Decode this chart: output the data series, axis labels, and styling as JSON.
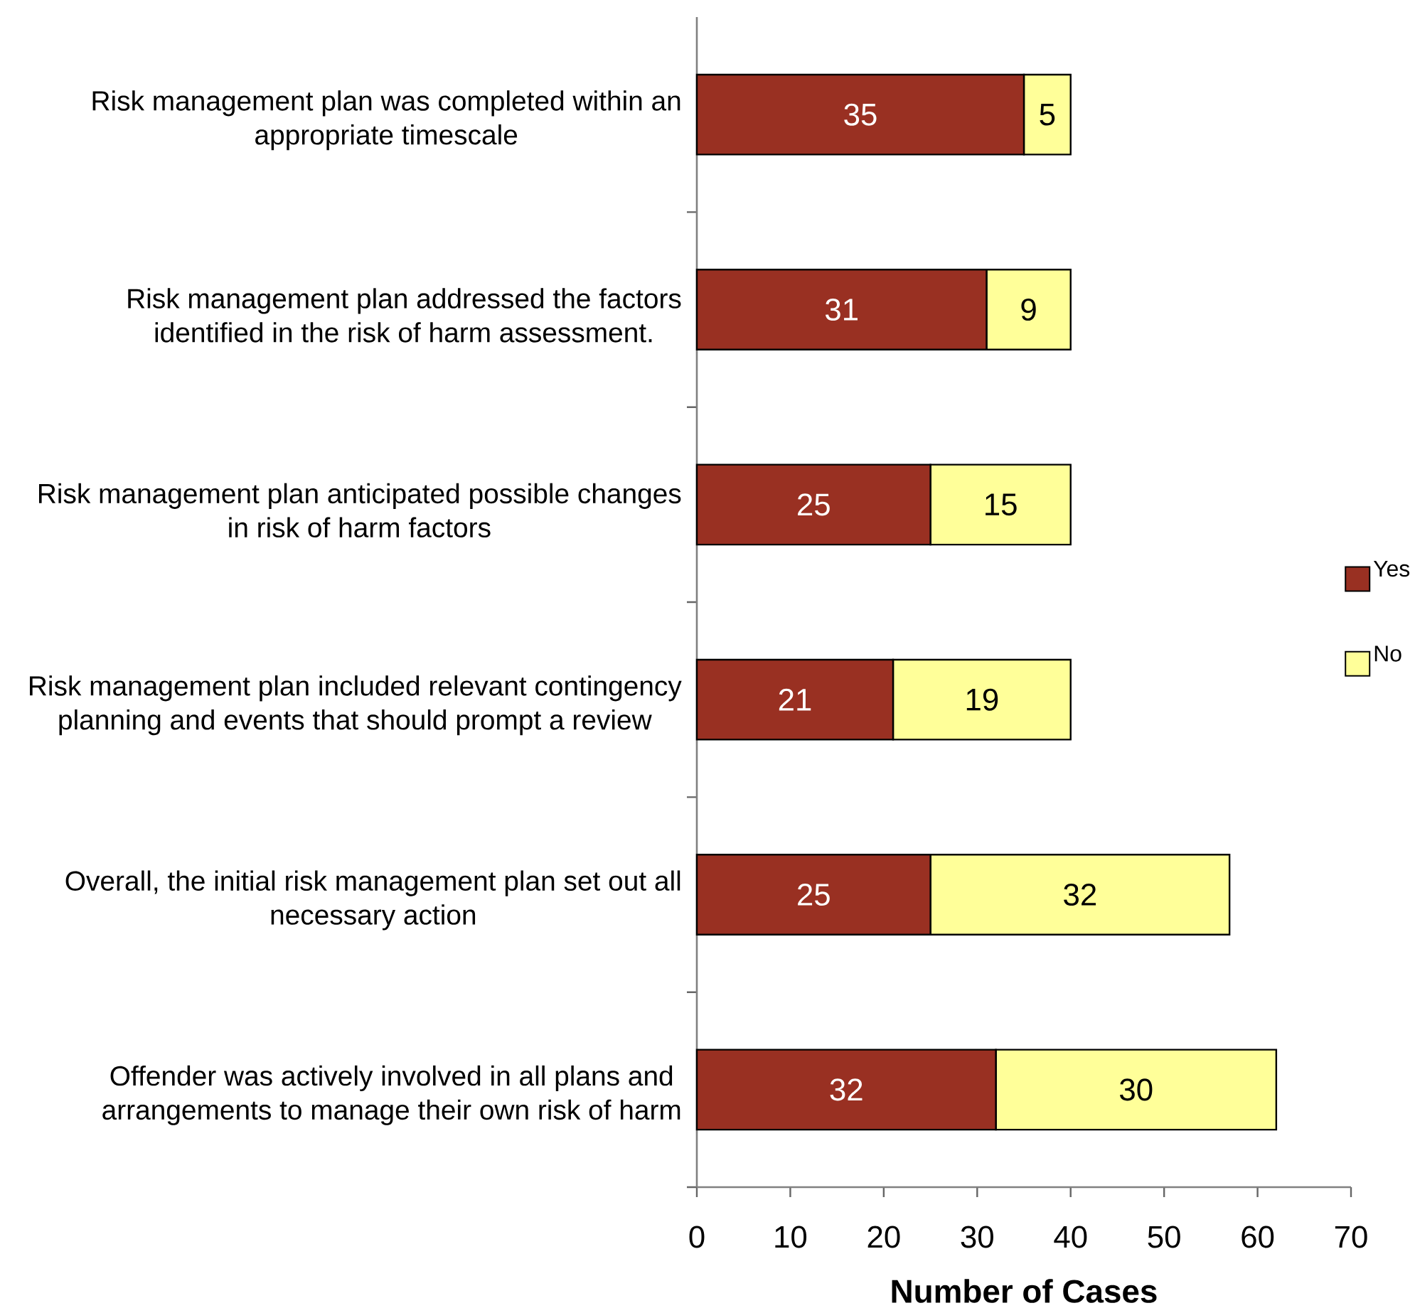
{
  "chart_data": {
    "type": "bar",
    "orientation": "horizontal",
    "stacked": true,
    "xlabel": "Number of Cases",
    "categories": [
      "Risk management plan was completed within an appropriate timescale",
      "Risk management plan addressed the factors identified in the risk of harm assessment.",
      "Risk management plan anticipated possible changes in risk of harm factors",
      "Risk management plan included relevant contingency planning and events that should prompt a review",
      "Overall, the initial risk management plan set out all necessary action",
      "Offender was actively involved in all plans and arrangements to manage their own risk of harm"
    ],
    "series": [
      {
        "name": "Yes",
        "color": "#993022",
        "values": [
          35,
          31,
          25,
          21,
          25,
          32
        ]
      },
      {
        "name": "No",
        "color": "#ffff99",
        "values": [
          5,
          9,
          15,
          19,
          32,
          30
        ]
      }
    ],
    "xlim": [
      0,
      70
    ],
    "xticks": [
      0,
      10,
      20,
      30,
      40,
      50,
      60,
      70
    ],
    "data_labels": true,
    "legend": "right"
  }
}
